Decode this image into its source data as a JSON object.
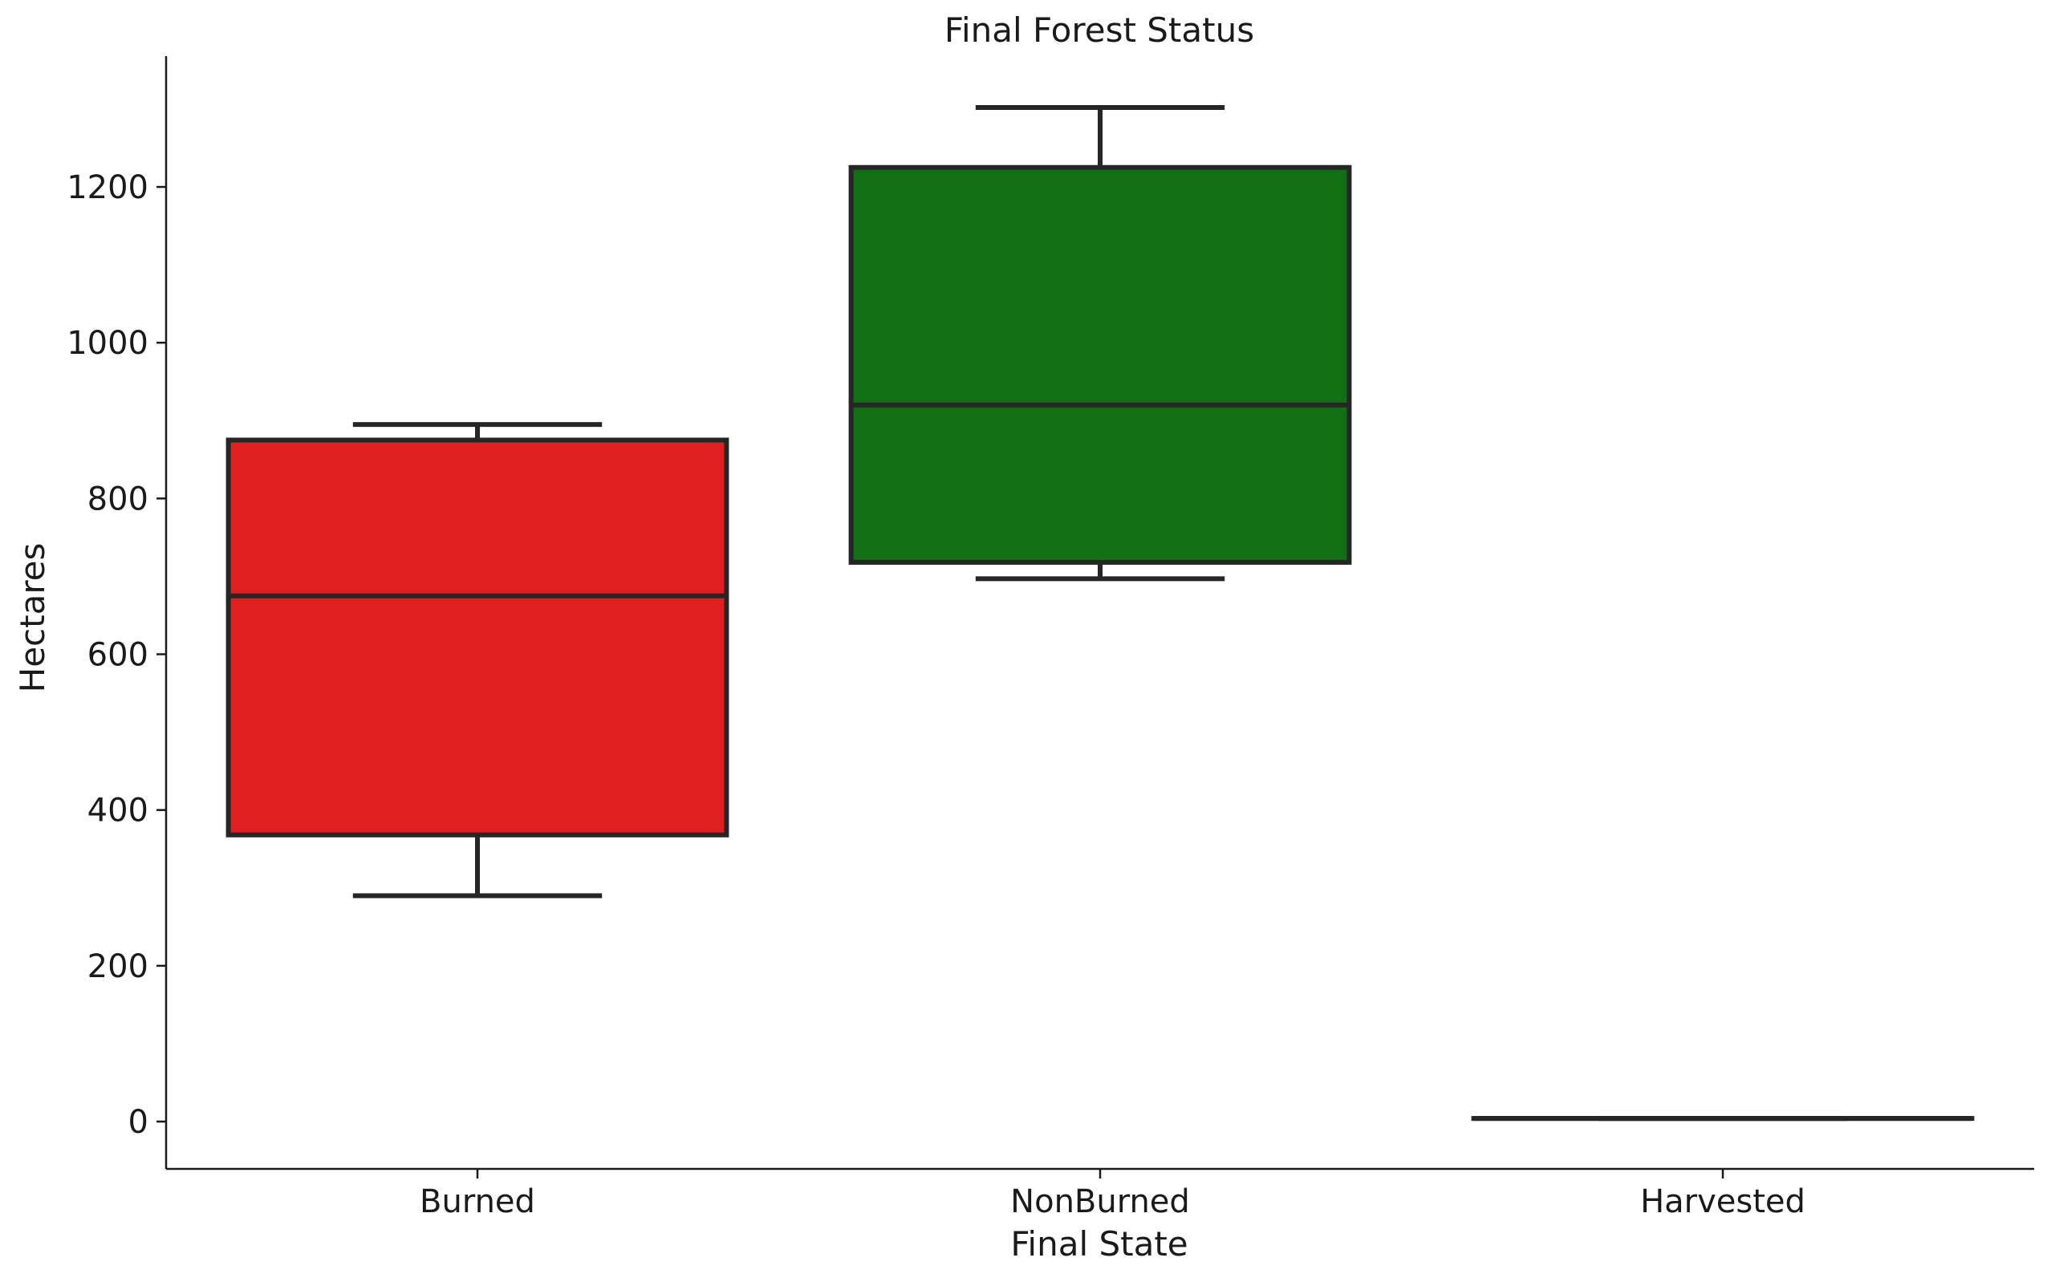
{
  "chart_data": {
    "type": "box",
    "title": "Final Forest Status",
    "xlabel": "Final State",
    "ylabel": "Hectares",
    "ylim": [
      -60,
      1370
    ],
    "yticks": [
      0,
      200,
      400,
      600,
      800,
      1000,
      1200
    ],
    "ytick_labels": [
      "0",
      "200",
      "400",
      "600",
      "800",
      "1000",
      "1200"
    ],
    "categories": [
      "Burned",
      "NonBurned",
      "Harvested"
    ],
    "boxes": [
      {
        "category": "Burned",
        "whisker_low": 290,
        "q1": 368,
        "median": 675,
        "q3": 875,
        "whisker_high": 895,
        "color": "#e02020"
      },
      {
        "category": "NonBurned",
        "whisker_low": 697,
        "q1": 718,
        "median": 920,
        "q3": 1225,
        "whisker_high": 1302,
        "color": "#117014"
      },
      {
        "category": "Harvested",
        "whisker_low": 4,
        "q1": 4,
        "median": 4,
        "q3": 4,
        "whisker_high": 4,
        "color": "#1a5fb4"
      }
    ],
    "grid": false,
    "legend": "none"
  }
}
